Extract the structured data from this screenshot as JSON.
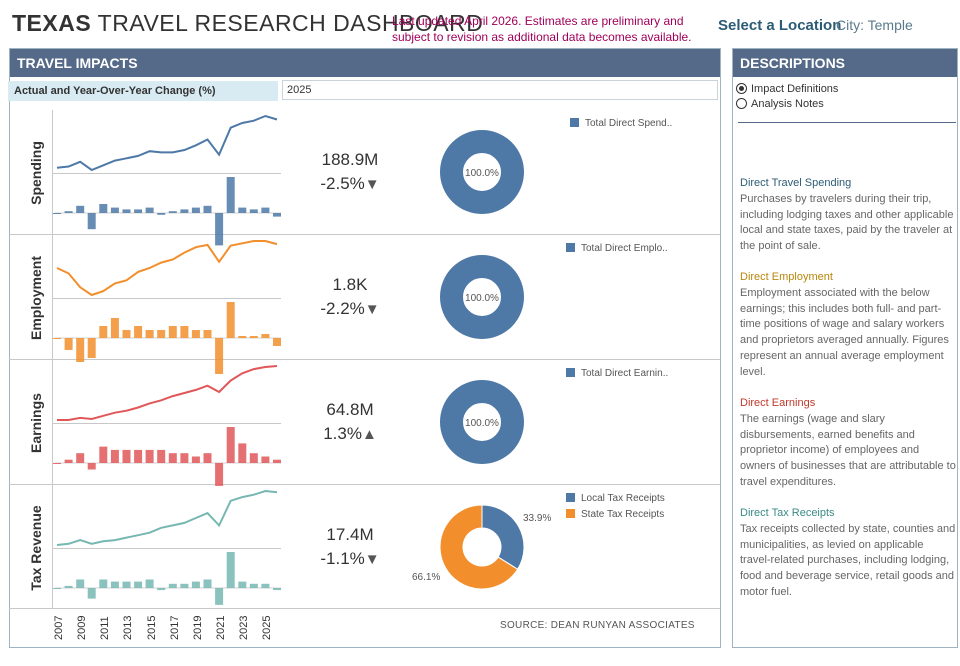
{
  "header": {
    "title_bold": "TEXAS",
    "title_rest": " TRAVEL RESEARCH DASHBOARD",
    "notice": "Last updated April 2026. Estimates are preliminary and subject to revision as additional data becomes available.",
    "location_label": "Select a Location",
    "city": "City: Temple"
  },
  "impacts": {
    "title": "TRAVEL IMPACTS",
    "subtitle": "Actual and Year-Over-Year Change (%)",
    "year": "2025",
    "source": "SOURCE: DEAN RUNYAN ASSOCIATES",
    "years": [
      "2007",
      "2009",
      "2011",
      "2013",
      "2015",
      "2017",
      "2019",
      "2021",
      "2023",
      "2025"
    ],
    "rows": [
      {
        "label": "Spending",
        "value": "188.9M",
        "change": "-2.5%",
        "arrow": "down",
        "color": "#4e79a7",
        "legend": [
          "Total Direct Spend.."
        ],
        "donut": [
          100
        ],
        "donut_colors": [
          "#4e79a7"
        ],
        "donut_label": "100.0%",
        "line": [
          22,
          23,
          27,
          20,
          24,
          28,
          30,
          32,
          36,
          35,
          35,
          37,
          41,
          46,
          33,
          56,
          60,
          62,
          66,
          63
        ],
        "bars": [
          0,
          1,
          4,
          -9,
          5,
          3,
          2,
          2,
          3,
          -1,
          1,
          2,
          3,
          4,
          -18,
          20,
          3,
          2,
          3,
          -2
        ]
      },
      {
        "label": "Employment",
        "value": "1.8K",
        "change": "-2.2%",
        "arrow": "down",
        "color": "#f28e2b",
        "legend": [
          "Total Direct Emplo.."
        ],
        "donut": [
          100
        ],
        "donut_colors": [
          "#4e79a7"
        ],
        "donut_label": "100.0%",
        "line": [
          40,
          33,
          15,
          5,
          10,
          20,
          24,
          35,
          40,
          47,
          51,
          60,
          67,
          70,
          48,
          69,
          72,
          75,
          75,
          71
        ],
        "bars": [
          0,
          -3,
          -6,
          -5,
          3,
          5,
          2,
          3,
          2,
          2,
          3,
          3,
          2,
          2,
          -9,
          9,
          0.5,
          0.5,
          1,
          -2
        ]
      },
      {
        "label": "Earnings",
        "value": "64.8M",
        "change": "1.3%",
        "arrow": "up",
        "color": "#e15759",
        "legend": [
          "Total Direct Earnin.."
        ],
        "donut": [
          100
        ],
        "donut_colors": [
          "#4e79a7"
        ],
        "donut_label": "100.0%",
        "line": [
          12,
          12,
          14,
          13,
          16,
          19,
          21,
          24,
          28,
          31,
          35,
          38,
          41,
          45,
          39,
          50,
          57,
          61,
          63,
          64
        ],
        "bars": [
          0,
          1,
          3,
          -2,
          5,
          4,
          4,
          4,
          4,
          4,
          3,
          3,
          2,
          3,
          -7,
          11,
          6,
          3,
          2,
          1
        ]
      },
      {
        "label": "Tax Revenue",
        "value": "17.4M",
        "change": "-1.1%",
        "arrow": "down",
        "color": "#76b7b2",
        "legend": [
          "Local Tax Receipts",
          "State Tax Receipts"
        ],
        "donut": [
          33.9,
          66.1
        ],
        "donut_colors": [
          "#4e79a7",
          "#f28e2b"
        ],
        "donut_label": "",
        "slice_labels": [
          "33.9%",
          "66.1%"
        ],
        "line": [
          20,
          21,
          24,
          21,
          23,
          24,
          26,
          28,
          30,
          34,
          36,
          38,
          42,
          46,
          36,
          56,
          59,
          61,
          64,
          63
        ],
        "bars": [
          0,
          1,
          4,
          -5,
          4,
          3,
          3,
          3,
          4,
          -1,
          2,
          2,
          3,
          4,
          -8,
          17,
          3,
          2,
          2,
          -1
        ]
      }
    ]
  },
  "descriptions": {
    "title": "DESCRIPTIONS",
    "options": [
      "Impact Definitions",
      "Analysis Notes"
    ],
    "selected": 0,
    "items": [
      {
        "heading": "Direct Travel Spending",
        "color": "#2c5c75",
        "text": "Purchases by travelers during their trip, including lodging taxes and other applicable local and state taxes, paid by the traveler at the point of sale."
      },
      {
        "heading": "Direct Employment",
        "color": "#b8860b",
        "text": "Employment associated with the below earnings; this includes both full- and part-time positions of wage and salary workers and proprietors averaged annually. Figures represent an annual average employment level."
      },
      {
        "heading": "Direct Earnings",
        "color": "#c0392b",
        "text": "The earnings (wage and slary disbursements, earned benefits and proprietor income) of employees and owners of businesses that are attributable to travel expenditures."
      },
      {
        "heading": "Direct Tax Receipts",
        "color": "#3a8a86",
        "text": "Tax receipts collected by state, counties and municipalities, as levied on applicable travel-related purchases, including lodging, food and beverage service, retail goods and motor fuel."
      }
    ]
  }
}
